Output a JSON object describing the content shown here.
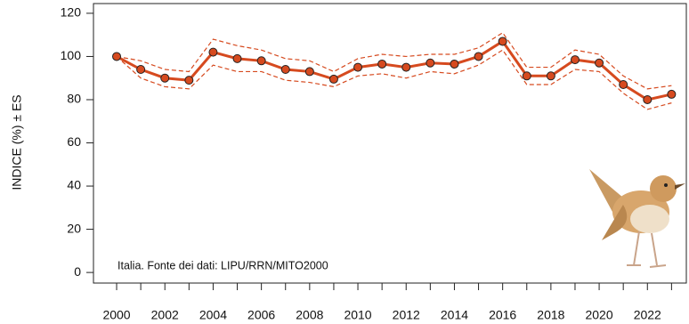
{
  "chart_data": {
    "type": "line",
    "y_label": "INDICE (%) ± ES",
    "annotation": "Italia. Fonte dei dati: LIPU/RRN/MITO2000",
    "x": [
      2000,
      2001,
      2002,
      2003,
      2004,
      2005,
      2006,
      2007,
      2008,
      2009,
      2010,
      2011,
      2012,
      2013,
      2014,
      2015,
      2016,
      2017,
      2018,
      2019,
      2020,
      2021,
      2022,
      2023
    ],
    "series": [
      {
        "name": "INDICE",
        "color": "#d64a1f",
        "values": [
          100,
          94,
          90,
          89,
          102,
          99,
          98,
          94,
          93,
          89.5,
          95,
          96.5,
          95,
          97,
          96.5,
          100,
          107,
          91,
          91,
          98.5,
          97,
          87,
          80,
          82.5
        ]
      },
      {
        "name": "+ES",
        "color": "#d64a1f",
        "dashed": true,
        "values": [
          100,
          98,
          94,
          93,
          108,
          105,
          103,
          99,
          98,
          93,
          99,
          101,
          100,
          101,
          101,
          104,
          111,
          95,
          95,
          103,
          101,
          91,
          85,
          86.5
        ]
      },
      {
        "name": "-ES",
        "color": "#d64a1f",
        "dashed": true,
        "values": [
          100,
          90,
          86,
          85,
          96,
          93,
          93,
          89,
          88,
          86,
          91,
          92,
          90,
          93,
          92,
          96,
          103,
          87,
          87,
          94,
          93,
          83,
          75.5,
          78.5
        ]
      }
    ],
    "xlim": [
      1999.04,
      2023.65
    ],
    "xticks": [
      2000,
      2002,
      2004,
      2006,
      2008,
      2010,
      2012,
      2014,
      2016,
      2018,
      2020,
      2022
    ],
    "ylim": [
      -4.9,
      124.5
    ],
    "yticks": [
      0,
      20,
      40,
      60,
      80,
      100,
      120
    ]
  }
}
